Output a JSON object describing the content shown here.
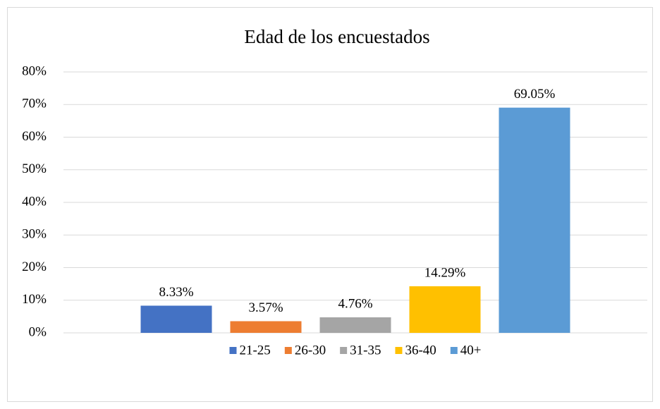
{
  "chart_data": {
    "type": "bar",
    "title": "Edad de los encuestados",
    "categories": [
      null
    ],
    "series": [
      {
        "name": "21-25",
        "color": "#4472c4",
        "values": [
          8.33
        ],
        "value_labels": [
          "8.33%"
        ]
      },
      {
        "name": "26-30",
        "color": "#ed7d31",
        "values": [
          3.57
        ],
        "value_labels": [
          "3.57%"
        ]
      },
      {
        "name": "31-35",
        "color": "#a5a5a5",
        "values": [
          4.76
        ],
        "value_labels": [
          "4.76%"
        ]
      },
      {
        "name": "36-40",
        "color": "#ffc000",
        "values": [
          14.29
        ],
        "value_labels": [
          "14.29%"
        ]
      },
      {
        "name": "40+",
        "color": "#5b9bd5",
        "values": [
          69.05
        ],
        "value_labels": [
          "69.05%"
        ]
      }
    ],
    "ylim": [
      0,
      80
    ],
    "yticks": [
      {
        "value": 0,
        "label": "0%"
      },
      {
        "value": 10,
        "label": "10%"
      },
      {
        "value": 20,
        "label": "20%"
      },
      {
        "value": 30,
        "label": "30%"
      },
      {
        "value": 40,
        "label": "40%"
      },
      {
        "value": 50,
        "label": "50%"
      },
      {
        "value": 60,
        "label": "60%"
      },
      {
        "value": 70,
        "label": "70%"
      },
      {
        "value": 80,
        "label": "80%"
      }
    ],
    "grid": true,
    "legend": "bottom"
  }
}
